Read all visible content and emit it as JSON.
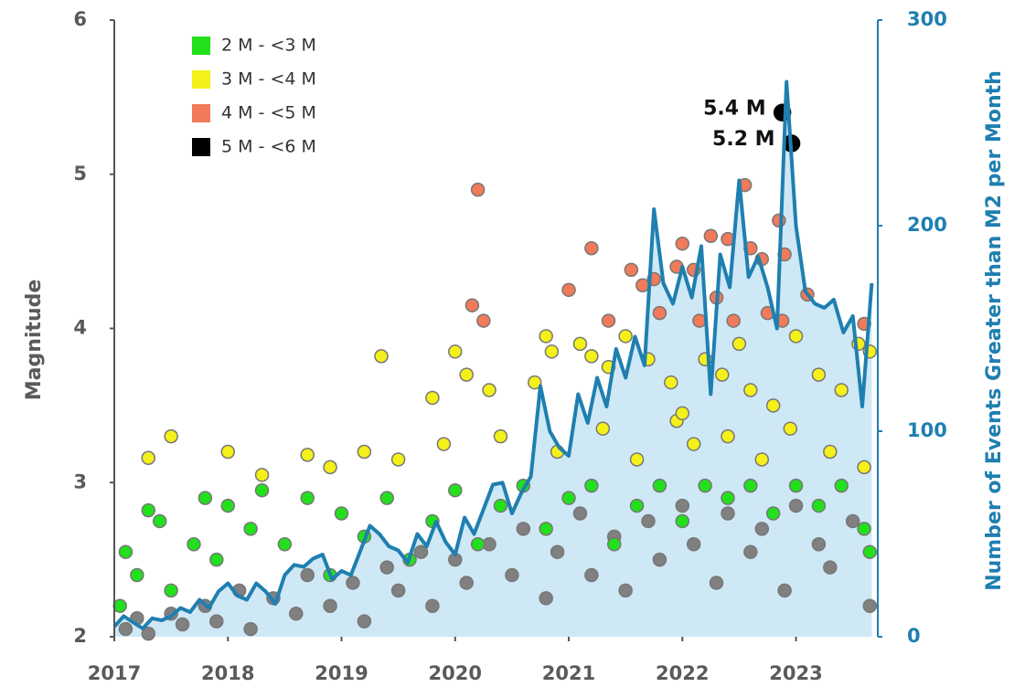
{
  "chart_data": {
    "type": "scatter",
    "y_label": "Magnitude",
    "y2_label": "Number of Events Greater than M2 per Month",
    "xlim": [
      2017,
      2023.72
    ],
    "xticks": [
      2017,
      2018,
      2019,
      2020,
      2021,
      2022,
      2023
    ],
    "ylim": [
      2,
      6
    ],
    "yticks": [
      2,
      3,
      4,
      5,
      6
    ],
    "y2lim": [
      0,
      300
    ],
    "y2ticks": [
      0,
      100,
      200,
      300
    ],
    "grid": false,
    "legend": "upper left",
    "series": [
      {
        "color": "#808080",
        "x": [
          2017.1,
          2017.2,
          2017.3,
          2017.5,
          2017.6,
          2017.8,
          2017.9,
          2018.1,
          2018.2,
          2018.4,
          2018.6,
          2018.7,
          2018.9,
          2019.1,
          2019.2,
          2019.4,
          2019.5,
          2019.7,
          2019.8,
          2020.0,
          2020.1,
          2020.3,
          2020.5,
          2020.6,
          2020.8,
          2020.9,
          2021.1,
          2021.2,
          2021.4,
          2021.5,
          2021.7,
          2021.8,
          2022.0,
          2022.1,
          2022.3,
          2022.4,
          2022.6,
          2022.7,
          2022.9,
          2023.0,
          2023.2,
          2023.3,
          2023.5,
          2023.65
        ],
        "values": [
          2.05,
          2.12,
          2.02,
          2.15,
          2.08,
          2.2,
          2.1,
          2.3,
          2.05,
          2.25,
          2.15,
          2.4,
          2.2,
          2.35,
          2.1,
          2.45,
          2.3,
          2.55,
          2.2,
          2.5,
          2.35,
          2.6,
          2.4,
          2.7,
          2.25,
          2.55,
          2.8,
          2.4,
          2.65,
          2.3,
          2.75,
          2.5,
          2.85,
          2.6,
          2.35,
          2.8,
          2.55,
          2.7,
          2.3,
          2.85,
          2.6,
          2.45,
          2.75,
          2.2
        ]
      },
      {
        "name": "2 M - <3 M",
        "color": "#22e01c",
        "x": [
          2017.05,
          2017.1,
          2017.2,
          2017.3,
          2017.4,
          2017.5,
          2017.7,
          2017.8,
          2017.9,
          2018.0,
          2018.2,
          2018.3,
          2018.5,
          2018.7,
          2018.9,
          2019.0,
          2019.2,
          2019.4,
          2019.6,
          2019.8,
          2020.0,
          2020.2,
          2020.4,
          2020.6,
          2020.8,
          2021.0,
          2021.2,
          2021.4,
          2021.6,
          2021.8,
          2022.0,
          2022.2,
          2022.4,
          2022.6,
          2022.8,
          2023.0,
          2023.2,
          2023.4,
          2023.6,
          2023.65
        ],
        "values": [
          2.2,
          2.55,
          2.4,
          2.82,
          2.75,
          2.3,
          2.6,
          2.9,
          2.5,
          2.85,
          2.7,
          2.95,
          2.6,
          2.9,
          2.4,
          2.8,
          2.65,
          2.9,
          2.5,
          2.75,
          2.95,
          2.6,
          2.85,
          2.98,
          2.7,
          2.9,
          2.98,
          2.6,
          2.85,
          2.98,
          2.75,
          2.98,
          2.9,
          2.98,
          2.8,
          2.98,
          2.85,
          2.98,
          2.7,
          2.55
        ]
      },
      {
        "name": "3 M - <4 M",
        "color": "#f4f01a",
        "x": [
          2017.3,
          2017.5,
          2018.0,
          2018.3,
          2018.7,
          2018.9,
          2019.2,
          2019.35,
          2019.5,
          2019.8,
          2019.9,
          2020.0,
          2020.1,
          2020.3,
          2020.4,
          2020.7,
          2020.8,
          2020.85,
          2020.9,
          2021.1,
          2021.2,
          2021.3,
          2021.35,
          2021.5,
          2021.6,
          2021.7,
          2021.9,
          2021.95,
          2022.0,
          2022.1,
          2022.2,
          2022.35,
          2022.4,
          2022.5,
          2022.6,
          2022.7,
          2022.8,
          2022.95,
          2023.0,
          2023.2,
          2023.3,
          2023.4,
          2023.55,
          2023.6,
          2023.65
        ],
        "values": [
          3.16,
          3.3,
          3.2,
          3.05,
          3.18,
          3.1,
          3.2,
          3.82,
          3.15,
          3.55,
          3.25,
          3.85,
          3.7,
          3.6,
          3.3,
          3.65,
          3.95,
          3.85,
          3.2,
          3.9,
          3.82,
          3.35,
          3.75,
          3.95,
          3.15,
          3.8,
          3.65,
          3.4,
          3.45,
          3.25,
          3.8,
          3.7,
          3.3,
          3.9,
          3.6,
          3.15,
          3.5,
          3.35,
          3.95,
          3.7,
          3.2,
          3.6,
          3.9,
          3.1,
          3.85
        ]
      },
      {
        "name": "4 M - <5 M",
        "color": "#f07a5a",
        "x": [
          2020.2,
          2020.15,
          2020.25,
          2021.0,
          2021.2,
          2021.35,
          2021.55,
          2021.65,
          2021.75,
          2021.8,
          2021.95,
          2022.0,
          2022.1,
          2022.15,
          2022.25,
          2022.3,
          2022.4,
          2022.45,
          2022.55,
          2022.6,
          2022.7,
          2022.75,
          2022.85,
          2022.9,
          2022.88,
          2023.1,
          2023.6
        ],
        "values": [
          4.9,
          4.15,
          4.05,
          4.25,
          4.52,
          4.05,
          4.38,
          4.28,
          4.32,
          4.1,
          4.4,
          4.55,
          4.38,
          4.05,
          4.6,
          4.2,
          4.58,
          4.05,
          4.93,
          4.52,
          4.45,
          4.1,
          4.7,
          4.48,
          4.05,
          4.22,
          4.03
        ]
      },
      {
        "name": "5 M - <6 M",
        "color": "#000000",
        "x": [
          2022.88,
          2022.96
        ],
        "values": [
          5.4,
          5.2
        ],
        "value_labels": [
          "5.4 M",
          "5.2 M"
        ]
      },
      {
        "type": "line",
        "axis": "y2",
        "color": "#1f7fb0",
        "fill": "#cfe8f6",
        "x": [
          2017.0,
          2017.083,
          2017.167,
          2017.25,
          2017.333,
          2017.417,
          2017.5,
          2017.583,
          2017.667,
          2017.75,
          2017.833,
          2017.917,
          2018.0,
          2018.083,
          2018.167,
          2018.25,
          2018.333,
          2018.417,
          2018.5,
          2018.583,
          2018.667,
          2018.75,
          2018.833,
          2018.917,
          2019.0,
          2019.083,
          2019.167,
          2019.25,
          2019.333,
          2019.417,
          2019.5,
          2019.583,
          2019.667,
          2019.75,
          2019.833,
          2019.917,
          2020.0,
          2020.083,
          2020.167,
          2020.25,
          2020.333,
          2020.417,
          2020.5,
          2020.583,
          2020.667,
          2020.75,
          2020.833,
          2020.917,
          2021.0,
          2021.083,
          2021.167,
          2021.25,
          2021.333,
          2021.417,
          2021.5,
          2021.583,
          2021.667,
          2021.75,
          2021.833,
          2021.917,
          2022.0,
          2022.083,
          2022.167,
          2022.25,
          2022.333,
          2022.417,
          2022.5,
          2022.583,
          2022.667,
          2022.75,
          2022.833,
          2022.917,
          2023.0,
          2023.083,
          2023.167,
          2023.25,
          2023.333,
          2023.417,
          2023.5,
          2023.583,
          2023.667
        ],
        "values": [
          5,
          10,
          7,
          4,
          9,
          8,
          10,
          14,
          12,
          18,
          14,
          22,
          26,
          20,
          18,
          26,
          22,
          16,
          30,
          35,
          34,
          38,
          40,
          28,
          32,
          30,
          42,
          54,
          50,
          44,
          42,
          36,
          50,
          44,
          56,
          46,
          40,
          58,
          50,
          62,
          74,
          75,
          60,
          70,
          78,
          122,
          100,
          92,
          88,
          118,
          104,
          126,
          112,
          140,
          126,
          146,
          132,
          208,
          172,
          162,
          180,
          165,
          190,
          118,
          186,
          170,
          222,
          175,
          185,
          170,
          150,
          270,
          200,
          168,
          162,
          160,
          164,
          148,
          156,
          112,
          172
        ]
      }
    ]
  }
}
